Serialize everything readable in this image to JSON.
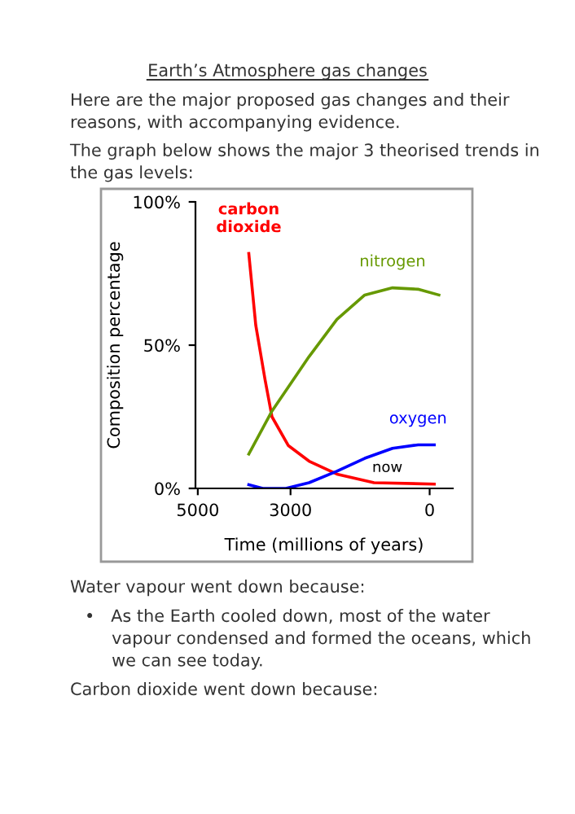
{
  "chart_data": {
    "type": "line",
    "title": "Earth’s Atmosphere gas changes",
    "xlabel": "Time (millions of years)",
    "ylabel": "Composition percentage",
    "xlim": [
      5050,
      -500
    ],
    "xticks": [
      5000,
      3000,
      0
    ],
    "ylim": [
      0,
      100
    ],
    "yticks": [
      {
        "value": 0,
        "label": "0%"
      },
      {
        "value": 50,
        "label": "50%"
      },
      {
        "value": 100,
        "label": "100%"
      }
    ],
    "grid": false,
    "legend": false,
    "marker": "none",
    "line_style": "solid",
    "series": [
      {
        "name": "carbon\ndioxide",
        "color": "#ff0000",
        "x": [
          3900,
          3750,
          3550,
          3400,
          3050,
          2600,
          2000,
          1200,
          -100
        ],
        "values": [
          82,
          57,
          38,
          25,
          15,
          9.5,
          5,
          2,
          1.5
        ]
      },
      {
        "name": "nitrogen",
        "color": "#669900",
        "x": [
          3900,
          3400,
          2600,
          2000,
          1400,
          800,
          250,
          -200
        ],
        "values": [
          12,
          27,
          46,
          59,
          67.5,
          70,
          69.5,
          67.5
        ]
      },
      {
        "name": "oxygen",
        "color": "#0000ff",
        "x": [
          3900,
          3600,
          3100,
          2600,
          2000,
          1400,
          800,
          250,
          -100
        ],
        "values": [
          1.3,
          0,
          0,
          2,
          6,
          10.5,
          14,
          15.2,
          15.2
        ]
      }
    ],
    "annotations": [
      {
        "text": "now",
        "x": 0,
        "y": 1.5
      },
      "Here are the major proposed gas changes and their\nreasons, with accompanying evidence.",
      "The graph below shows the major 3 theorised trends in\nthe gas levels:",
      "Water vapour went down because:",
      "•   As the Earth cooled down, most of the water\n     vapour condensed and formed the oceans, which\n     we can see today.",
      "Carbon dioxide went down because:"
    ]
  }
}
